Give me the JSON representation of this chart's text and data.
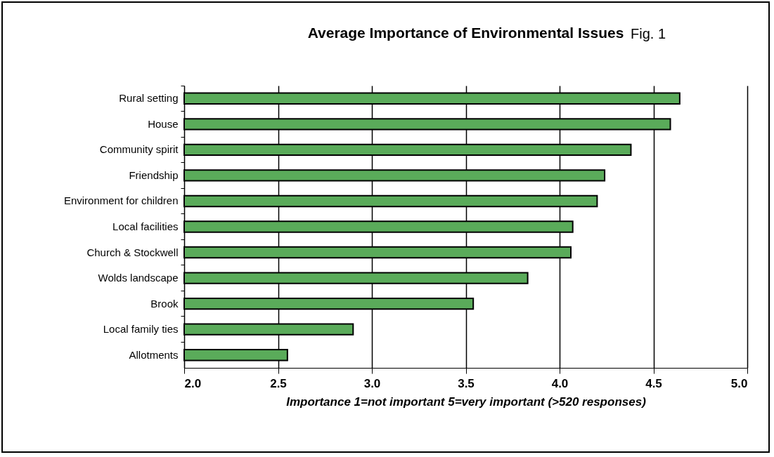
{
  "chart_data": {
    "type": "bar",
    "orientation": "horizontal",
    "title": "Average Importance of Environmental Issues",
    "annotations": [
      "Fig. 1"
    ],
    "xlabel": "Importance 1=not important  5=very important (>520 responses)",
    "categories": [
      "Rural setting",
      "House",
      "Community spirit",
      "Friendship",
      "Environment for children",
      "Local facilities",
      "Church & Stockwell",
      "Wolds landscape",
      "Brook",
      "Local family ties",
      "Allotments"
    ],
    "series": [
      {
        "color": "#5aab5a",
        "values": [
          4.64,
          4.59,
          4.38,
          4.24,
          4.2,
          4.07,
          4.06,
          3.83,
          3.54,
          2.9,
          2.55
        ]
      }
    ],
    "xlim": [
      2,
      5
    ],
    "xticks": [
      {
        "value": 2,
        "label": "2.0"
      },
      2.5,
      {
        "value": 3,
        "label": "3.0"
      },
      3.5,
      {
        "value": 4,
        "label": "4.0"
      },
      4.5,
      {
        "value": 5,
        "label": "5.0"
      }
    ],
    "grid": "x",
    "legend": false
  }
}
